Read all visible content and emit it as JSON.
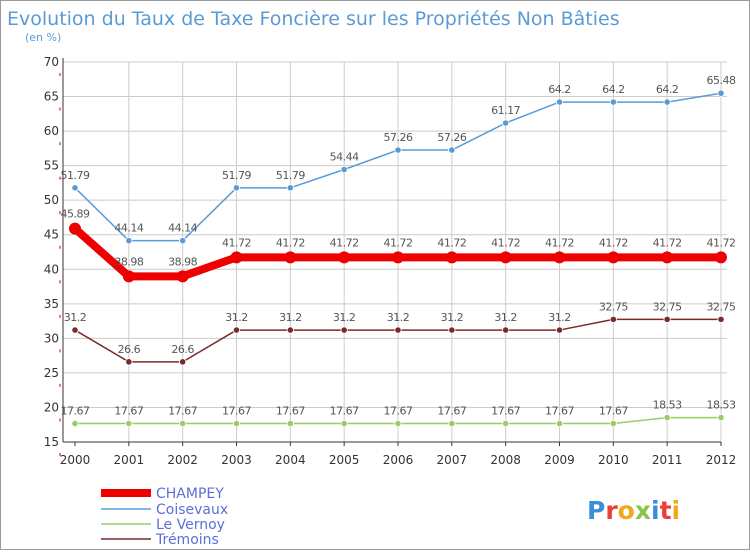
{
  "header": {
    "title": "Evolution du Taux de Taxe Foncière sur les Propriétés Non Bâties",
    "unit": "(en %)"
  },
  "colors": {
    "title": "#5b9bd5",
    "axis": "#333333",
    "grid": "#cccccc",
    "tick_mark": "#cc0000",
    "label": "#555555",
    "legend_text": "#5b6fd6"
  },
  "brand": {
    "letters": [
      {
        "ch": "P",
        "color": "#3b8fd8"
      },
      {
        "ch": "r",
        "color": "#e8403a"
      },
      {
        "ch": "o",
        "color": "#f2a81d"
      },
      {
        "ch": "x",
        "color": "#8bc34a"
      },
      {
        "ch": "i",
        "color": "#3b8fd8"
      },
      {
        "ch": "t",
        "color": "#e8403a"
      },
      {
        "ch": "i",
        "color": "#f2a81d"
      }
    ]
  },
  "chart_data": {
    "type": "line",
    "title": "Evolution du Taux de Taxe Foncière sur les Propriétés Non Bâties",
    "ylabel": "(en %)",
    "xlabel": "",
    "x": [
      "2000",
      "2001",
      "2002",
      "2003",
      "2004",
      "2005",
      "2006",
      "2007",
      "2008",
      "2009",
      "2010",
      "2011",
      "2012"
    ],
    "ylim": [
      15,
      70
    ],
    "yticks": [
      15,
      20,
      25,
      30,
      35,
      40,
      45,
      50,
      55,
      60,
      65,
      70
    ],
    "grid": true,
    "legend_position": "bottom-left",
    "series": [
      {
        "name": "CHAMPEY",
        "color": "#ee0000",
        "emphasis": true,
        "values": [
          45.89,
          38.98,
          38.98,
          41.72,
          41.72,
          41.72,
          41.72,
          41.72,
          41.72,
          41.72,
          41.72,
          41.72,
          41.72
        ],
        "labels": [
          "45.89",
          "38.98",
          "38.98",
          "41.72",
          "41.72",
          "41.72",
          "41.72",
          "41.72",
          "41.72",
          "41.72",
          "41.72",
          "41.72",
          "41.72"
        ]
      },
      {
        "name": "Coisevaux",
        "color": "#5b9bd5",
        "values": [
          51.79,
          44.14,
          44.14,
          51.79,
          51.79,
          54.44,
          57.26,
          57.26,
          61.17,
          64.2,
          64.2,
          64.2,
          65.48
        ],
        "labels": [
          "51.79",
          "44.14",
          "44.14",
          "51.79",
          "51.79",
          "54.44",
          "57.26",
          "57.26",
          "61.17",
          "64.2",
          "64.2",
          "64.2",
          "65.48"
        ]
      },
      {
        "name": "Le Vernoy",
        "color": "#9ccc65",
        "values": [
          17.67,
          17.67,
          17.67,
          17.67,
          17.67,
          17.67,
          17.67,
          17.67,
          17.67,
          17.67,
          17.67,
          18.53,
          18.53
        ],
        "labels": [
          "17.67",
          "17.67",
          "17.67",
          "17.67",
          "17.67",
          "17.67",
          "17.67",
          "17.67",
          "17.67",
          "17.67",
          "17.67",
          "18.53",
          "18.53"
        ]
      },
      {
        "name": "Trémoins",
        "color": "#7b2a2a",
        "values": [
          31.2,
          26.6,
          26.6,
          31.2,
          31.2,
          31.2,
          31.2,
          31.2,
          31.2,
          31.2,
          32.75,
          32.75,
          32.75
        ],
        "labels": [
          "31.2",
          "26.6",
          "26.6",
          "31.2",
          "31.2",
          "31.2",
          "31.2",
          "31.2",
          "31.2",
          "31.2",
          "32.75",
          "32.75",
          "32.75"
        ]
      }
    ]
  }
}
